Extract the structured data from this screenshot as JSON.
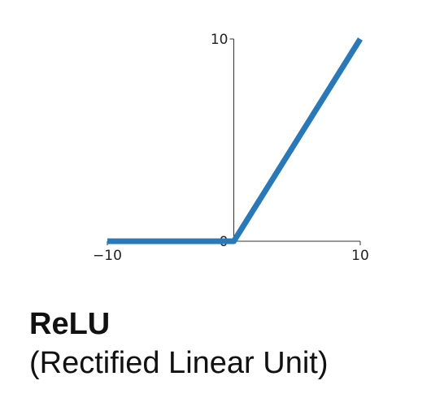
{
  "chart_data": {
    "type": "line",
    "x": [
      -10,
      0,
      10
    ],
    "y": [
      0,
      0,
      10
    ],
    "xlim": [
      -10,
      10
    ],
    "ylim": [
      0,
      10
    ],
    "x_ticks": [
      {
        "value": -10,
        "label": "−10"
      },
      {
        "value": 10,
        "label": "10"
      }
    ],
    "y_ticks": [
      {
        "value": 0,
        "label": "0"
      },
      {
        "value": 10,
        "label": "10"
      }
    ],
    "grid": false,
    "line_color": "#2979b8"
  },
  "caption": {
    "title": "ReLU",
    "subtitle": "(Rectified Linear Unit)"
  }
}
